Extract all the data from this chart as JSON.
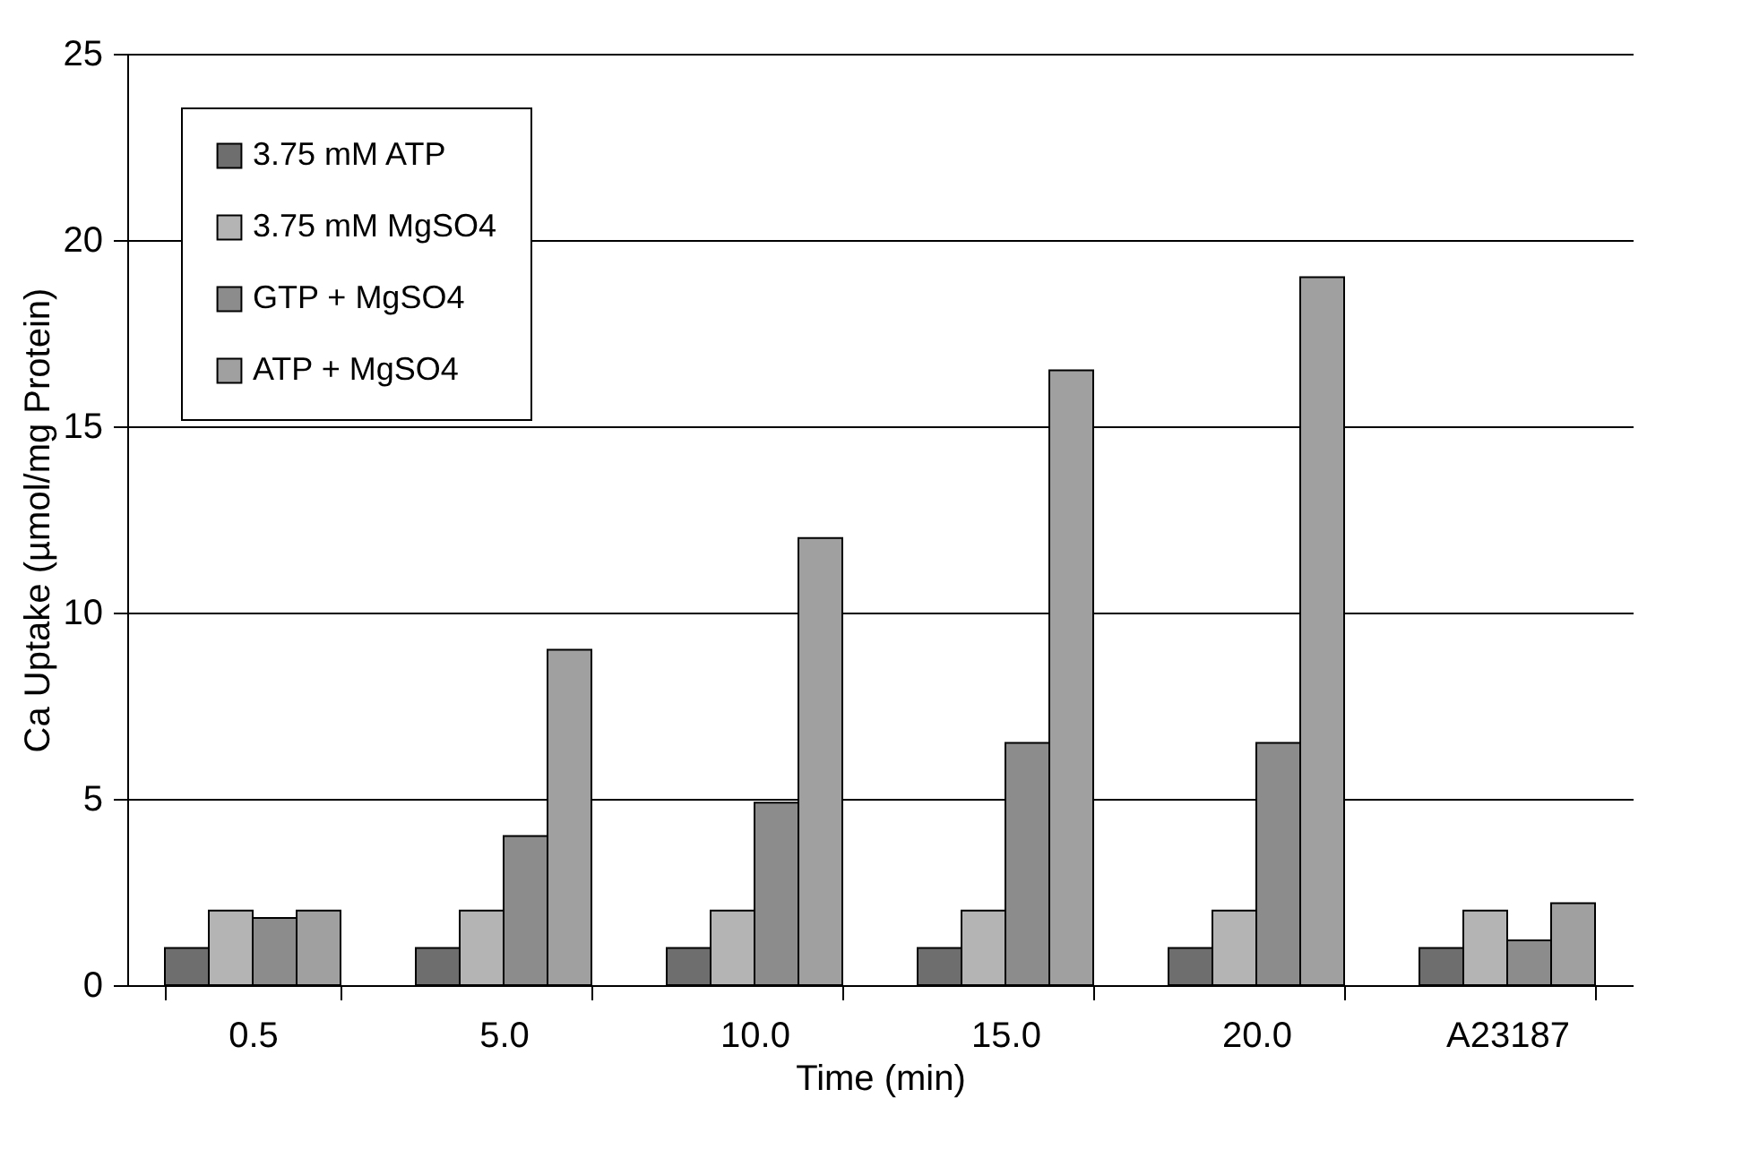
{
  "chart_data": {
    "type": "bar",
    "xlabel": "Time (min)",
    "ylabel": "Ca Uptake (µmol/mg Protein)",
    "categories": [
      "0.5",
      "5.0",
      "10.0",
      "15.0",
      "20.0",
      "A23187"
    ],
    "series": [
      {
        "name": "3.75 mM ATP",
        "color": "#6e6e6e",
        "values": [
          1,
          1,
          1,
          1,
          1,
          1
        ]
      },
      {
        "name": "3.75 mM MgSO4",
        "color": "#b4b4b4",
        "values": [
          2,
          2,
          2,
          2,
          2,
          2
        ]
      },
      {
        "name": "GTP + MgSO4",
        "color": "#8c8c8c",
        "values": [
          1.8,
          4,
          4.9,
          6.5,
          6.5,
          1.2
        ]
      },
      {
        "name": "ATP + MgSO4",
        "color": "#a0a0a0",
        "values": [
          2,
          9,
          12,
          16.5,
          19,
          2.2
        ]
      }
    ],
    "ylim": [
      0,
      25
    ],
    "yticks": [
      0,
      5,
      10,
      15,
      20,
      25
    ],
    "grid": "y",
    "legend": "top left"
  }
}
